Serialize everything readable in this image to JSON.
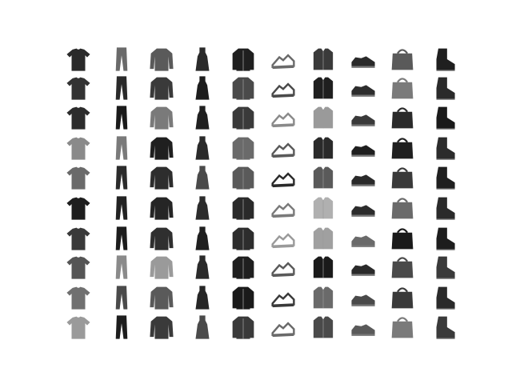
{
  "figure": {
    "background": "#ffffff",
    "rows": 10,
    "cols": 10
  },
  "palette": {
    "ink_dark": "#161616",
    "ink_mid": "#3a3a3a",
    "ink_light": "#7d7d7d",
    "ink_pale": "#b8b8b8"
  },
  "columns": [
    {
      "category": "t-shirt",
      "icon": "tshirt-icon",
      "tones": [
        "#2a2a2a",
        "#333333",
        "#2c2c2c",
        "#8a8a8a",
        "#6a6a6a",
        "#1e1e1e",
        "#3a3a3a",
        "#555555",
        "#707070",
        "#9a9a9a"
      ]
    },
    {
      "category": "trouser",
      "icon": "trouser-icon",
      "tones": [
        "#6a6a6a",
        "#2a2a2a",
        "#1a1a1a",
        "#7a7a7a",
        "#2b2b2b",
        "#222222",
        "#1c1c1c",
        "#8a8a8a",
        "#4a4a4a",
        "#1d1d1d"
      ]
    },
    {
      "category": "pullover",
      "icon": "pullover-icon",
      "tones": [
        "#5a5a5a",
        "#3a3a3a",
        "#7a7a7a",
        "#1f1f1f",
        "#2d2d2d",
        "#252525",
        "#2f2f2f",
        "#9a9a9a",
        "#5a5a5a",
        "#3a3a3a"
      ]
    },
    {
      "category": "dress",
      "icon": "dress-icon",
      "tones": [
        "#2a2a2a",
        "#1d1d1d",
        "#202020",
        "#2a2a2a",
        "#4a4a4a",
        "#2c2c2c",
        "#1f1f1f",
        "#2a2a2a",
        "#262626",
        "#4a4a4a"
      ]
    },
    {
      "category": "coat",
      "icon": "coat-icon",
      "tones": [
        "#1f1f1f",
        "#4a4a4a",
        "#3a3a3a",
        "#6a6a6a",
        "#5a5a5a",
        "#2a2a2a",
        "#2d2d2d",
        "#1f1f1f",
        "#1a1a1a",
        "#3a3a3a"
      ]
    },
    {
      "category": "sandal",
      "icon": "sandal-icon",
      "tones": [
        "#6a6a6a",
        "#4a4a4a",
        "#8a8a8a",
        "#5a5a5a",
        "#2a2a2a",
        "#7a7a7a",
        "#9a9a9a",
        "#5a5a5a",
        "#3a3a3a",
        "#6a6a6a"
      ]
    },
    {
      "category": "shirt",
      "icon": "shirt-icon",
      "tones": [
        "#3a3a3a",
        "#1f1f1f",
        "#9a9a9a",
        "#2a2a2a",
        "#5a5a5a",
        "#b0b0b0",
        "#a0a0a0",
        "#1a1a1a",
        "#6a6a6a",
        "#4a4a4a"
      ]
    },
    {
      "category": "sneaker",
      "icon": "sneaker-icon",
      "tones": [
        "#2a2a2a",
        "#2d2d2d",
        "#3a3a3a",
        "#1f1f1f",
        "#2a2a2a",
        "#2c2c2c",
        "#6a6a6a",
        "#2a2a2a",
        "#4a4a4a",
        "#5a5a5a"
      ]
    },
    {
      "category": "bag",
      "icon": "bag-icon",
      "tones": [
        "#5a5a5a",
        "#7a7a7a",
        "#2a2a2a",
        "#1f1f1f",
        "#3a3a3a",
        "#6a6a6a",
        "#1a1a1a",
        "#4a4a4a",
        "#3a3a3a",
        "#7a7a7a"
      ]
    },
    {
      "category": "ankle-boot",
      "icon": "ankle-boot-icon",
      "tones": [
        "#1f1f1f",
        "#2a2a2a",
        "#1a1a1a",
        "#2c2c2c",
        "#1f1f1f",
        "#2a2a2a",
        "#1d1d1d",
        "#3a3a3a",
        "#2a2a2a",
        "#3a3a3a"
      ]
    }
  ]
}
